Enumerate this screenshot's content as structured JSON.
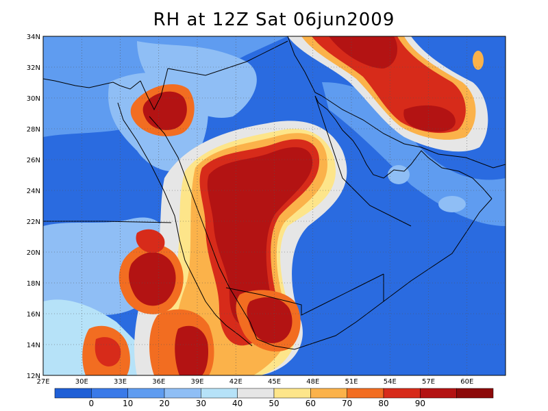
{
  "title": "RH at 12Z Sat 06jun2009",
  "lat_labels": [
    "34N",
    "32N",
    "30N",
    "28N",
    "26N",
    "24N",
    "22N",
    "20N",
    "18N",
    "16N",
    "14N",
    "12N"
  ],
  "lon_labels": [
    "27E",
    "30E",
    "33E",
    "36E",
    "39E",
    "42E",
    "45E",
    "48E",
    "51E",
    "54E",
    "57E",
    "60E"
  ],
  "colorbar": {
    "colors": [
      "#1f5fd6",
      "#3a7ae8",
      "#5f9cf0",
      "#8fbef5",
      "#b6e2f8",
      "#e6e6e6",
      "#fde58a",
      "#fbb24a",
      "#f26d21",
      "#d72b1a",
      "#b31313",
      "#8c0a0a"
    ],
    "labels": [
      "0",
      "10",
      "20",
      "30",
      "40",
      "50",
      "60",
      "70",
      "80",
      "90"
    ]
  },
  "palette": {
    "c1": "#1f5fd6",
    "c2": "#3a7ae8",
    "c3": "#5f9cf0",
    "c4": "#8fbef5",
    "c5": "#b6e2f8",
    "c6": "#e6e6e6",
    "c7": "#fde58a",
    "c8": "#fbb24a",
    "c9": "#f26d21",
    "c10": "#d72b1a",
    "c11": "#b31313"
  }
}
